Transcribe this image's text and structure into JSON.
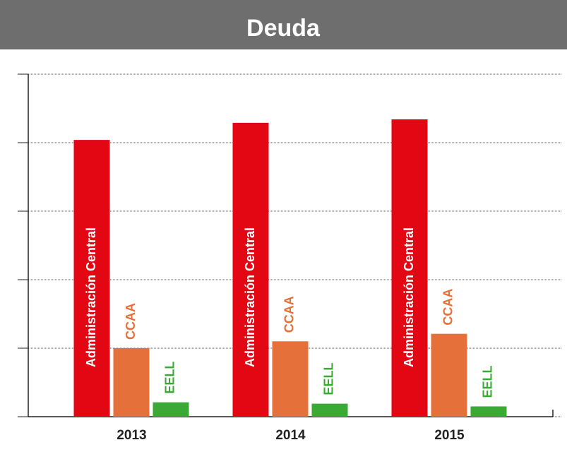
{
  "chart_data": {
    "type": "bar",
    "title": "Deuda",
    "categories": [
      "2013",
      "2014",
      "2015"
    ],
    "series": [
      {
        "name": "Administración Central",
        "color": "#e30613",
        "values": [
          4.04,
          4.29,
          4.34
        ]
      },
      {
        "name": "CCAA",
        "color": "#e5703a",
        "values": [
          1.0,
          1.1,
          1.21
        ]
      },
      {
        "name": "EELL",
        "color": "#3aa935",
        "values": [
          0.21,
          0.19,
          0.15
        ]
      }
    ],
    "ylim": [
      0,
      5
    ],
    "yticks": [
      0,
      1,
      2,
      3,
      4,
      5
    ],
    "grid": true
  }
}
